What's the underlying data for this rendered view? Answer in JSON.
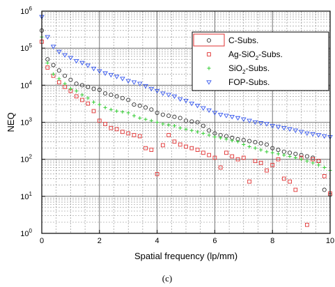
{
  "chart_data": {
    "type": "scatter",
    "title": "",
    "caption": "(c)",
    "xlabel": "Spatial frequency (lp/mm)",
    "ylabel": "NEQ",
    "xlim": [
      0,
      10
    ],
    "ylim": [
      1,
      1000000
    ],
    "yscale": "log",
    "grid": true,
    "legend_position": "top-right",
    "x_ticks": [
      {
        "value": 0,
        "label": "0"
      },
      {
        "value": 2,
        "label": "2"
      },
      {
        "value": 4,
        "label": "4"
      },
      {
        "value": 6,
        "label": "6"
      },
      {
        "value": 8,
        "label": "8"
      },
      {
        "value": 10,
        "label": "10"
      }
    ],
    "y_ticks": [
      {
        "value": 1,
        "base": "10",
        "exp": "0"
      },
      {
        "value": 10,
        "base": "10",
        "exp": "1"
      },
      {
        "value": 100,
        "base": "10",
        "exp": "2"
      },
      {
        "value": 1000,
        "base": "10",
        "exp": "3"
      },
      {
        "value": 10000,
        "base": "10",
        "exp": "4"
      },
      {
        "value": 100000,
        "base": "10",
        "exp": "5"
      },
      {
        "value": 1000000,
        "base": "10",
        "exp": "6"
      }
    ],
    "x": [
      0,
      0.2,
      0.4,
      0.6,
      0.8,
      1.0,
      1.2,
      1.4,
      1.6,
      1.8,
      2.0,
      2.2,
      2.4,
      2.6,
      2.8,
      3.0,
      3.2,
      3.4,
      3.6,
      3.8,
      4.0,
      4.2,
      4.4,
      4.6,
      4.8,
      5.0,
      5.2,
      5.4,
      5.6,
      5.8,
      6.0,
      6.2,
      6.4,
      6.6,
      6.8,
      7.0,
      7.2,
      7.4,
      7.6,
      7.8,
      8.0,
      8.2,
      8.4,
      8.6,
      8.8,
      9.0,
      9.2,
      9.4,
      9.6,
      9.8,
      10.0
    ],
    "series": [
      {
        "name": "C-Subs.",
        "marker": "circle",
        "color": "#333333",
        "values": [
          300000,
          50000,
          35000,
          25000,
          18000,
          14000,
          11000,
          10000,
          9000,
          8000,
          7500,
          6000,
          5500,
          5000,
          4500,
          4000,
          3000,
          2800,
          2500,
          2200,
          1800,
          1600,
          1500,
          1400,
          1300,
          1100,
          1050,
          1000,
          800,
          600,
          500,
          450,
          420,
          380,
          350,
          330,
          310,
          290,
          270,
          250,
          200,
          180,
          160,
          150,
          140,
          130,
          120,
          110,
          90,
          15,
          11
        ]
      },
      {
        "name": "Ag-SiO₂-Subs.",
        "name_parts": [
          "Ag-SiO",
          "2",
          "-Subs."
        ],
        "marker": "square",
        "color": "#e03030",
        "values": [
          150000,
          30000,
          18000,
          12000,
          9000,
          7000,
          5000,
          4000,
          3200,
          2000,
          1100,
          900,
          700,
          650,
          550,
          500,
          450,
          420,
          200,
          180,
          40,
          240,
          450,
          300,
          250,
          220,
          200,
          180,
          150,
          130,
          110,
          60,
          150,
          120,
          100,
          110,
          25,
          90,
          80,
          50,
          70,
          100,
          30,
          25,
          15,
          110,
          1.7,
          100,
          90,
          35,
          12
        ]
      },
      {
        "name": "SiO₂-Subs.",
        "name_parts": [
          "SiO",
          "2",
          "-Subs."
        ],
        "marker": "plus",
        "color": "#33cc33",
        "values": [
          200000,
          40000,
          20000,
          15000,
          11000,
          8000,
          7000,
          5500,
          4500,
          3500,
          3000,
          2500,
          2200,
          2000,
          1900,
          1800,
          1500,
          1300,
          1200,
          1100,
          1000,
          900,
          850,
          800,
          700,
          650,
          600,
          550,
          500,
          450,
          400,
          380,
          350,
          320,
          300,
          250,
          220,
          200,
          180,
          160,
          150,
          140,
          130,
          120,
          110,
          100,
          90,
          80,
          70,
          60,
          50
        ]
      },
      {
        "name": "FOP-Subs.",
        "marker": "triangle-down",
        "color": "#3355ee",
        "values": [
          700000,
          200000,
          110000,
          80000,
          65000,
          55000,
          45000,
          40000,
          34000,
          28000,
          24000,
          21000,
          19000,
          17000,
          15000,
          13000,
          12000,
          11000,
          9500,
          8000,
          7000,
          6000,
          5500,
          5000,
          4200,
          3800,
          3200,
          2800,
          2400,
          2100,
          1800,
          1600,
          1500,
          1400,
          1300,
          1200,
          1100,
          1000,
          950,
          900,
          800,
          750,
          700,
          650,
          600,
          550,
          500,
          480,
          450,
          420,
          400
        ]
      }
    ]
  }
}
